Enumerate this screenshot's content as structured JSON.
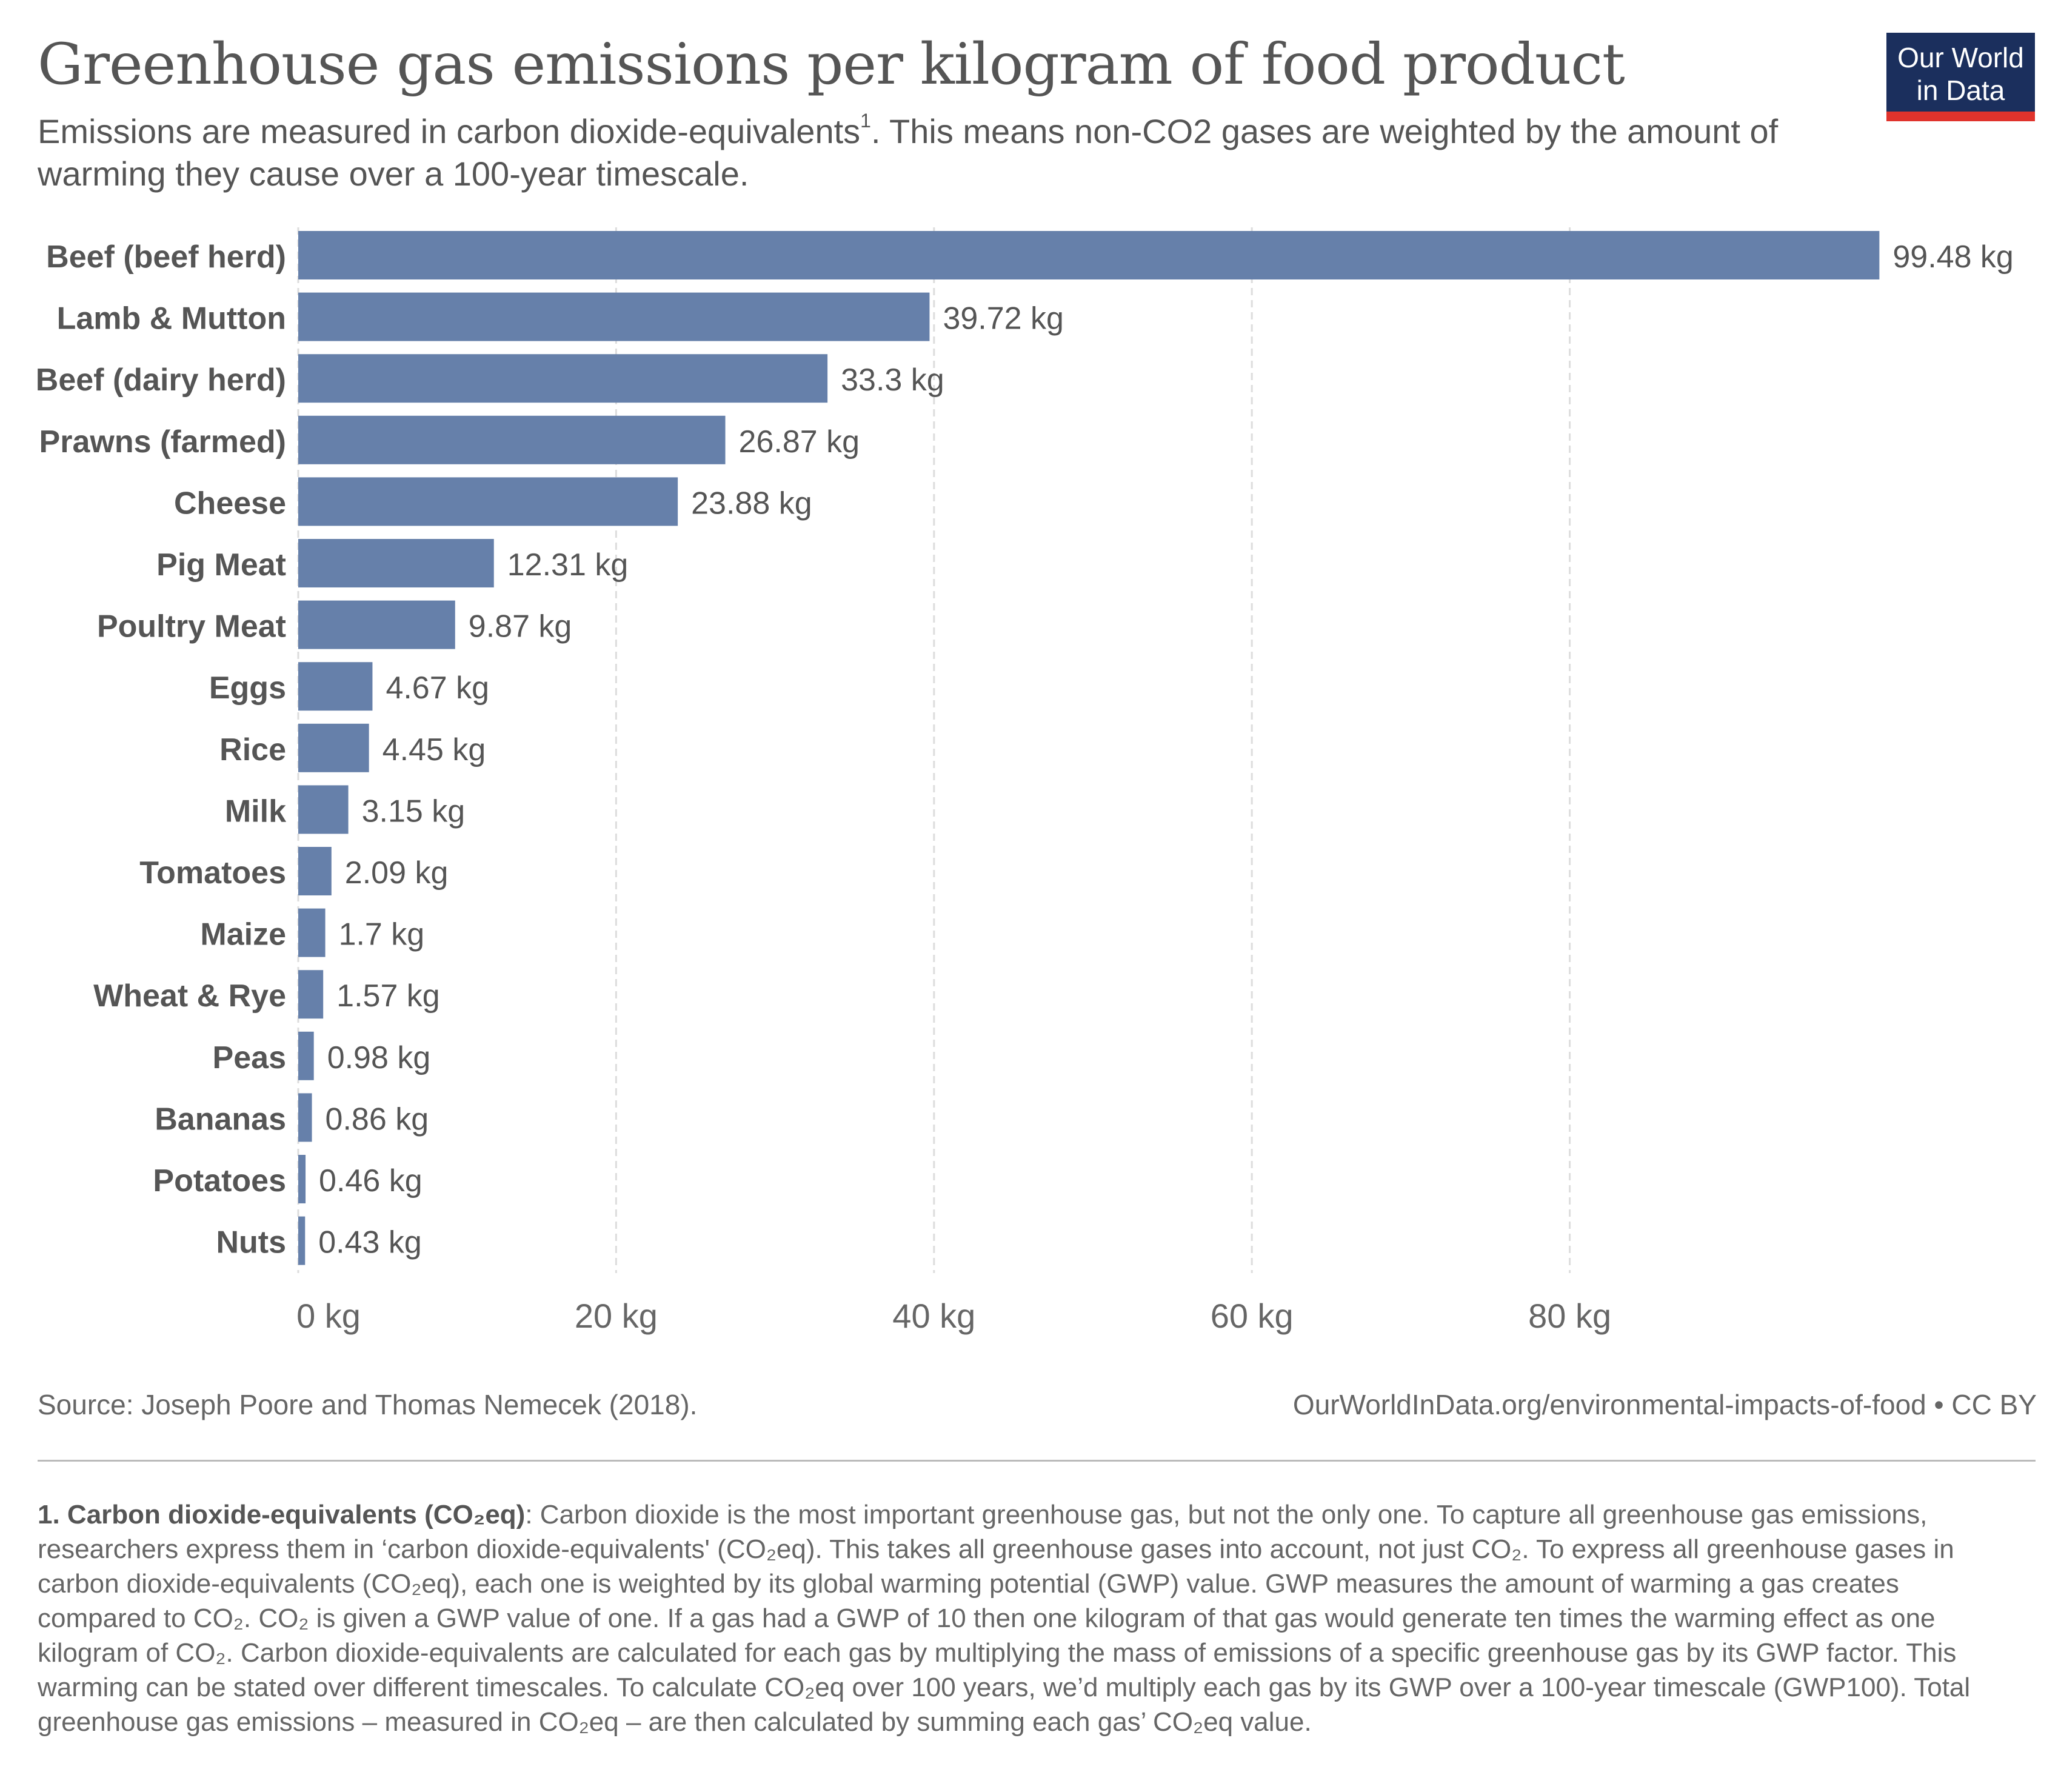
{
  "header": {
    "title": "Greenhouse gas emissions per kilogram of food product",
    "subtitle_before": "Emissions are measured in carbon dioxide-equivalents",
    "subtitle_sup": "1",
    "subtitle_after": ". This means non-CO2 gases are weighted by the amount of warming they cause over a 100-year timescale."
  },
  "logo": {
    "line1": "Our World",
    "line2": "in Data",
    "bg_color": "#1b2f5d",
    "accent_color": "#e0332c"
  },
  "chart_data": {
    "type": "bar",
    "orientation": "horizontal",
    "title": "Greenhouse gas emissions per kilogram of food product",
    "categories": [
      "Beef (beef herd)",
      "Lamb & Mutton",
      "Beef (dairy herd)",
      "Prawns (farmed)",
      "Cheese",
      "Pig Meat",
      "Poultry Meat",
      "Eggs",
      "Rice",
      "Milk",
      "Tomatoes",
      "Maize",
      "Wheat & Rye",
      "Peas",
      "Bananas",
      "Potatoes",
      "Nuts"
    ],
    "values": [
      99.48,
      39.72,
      33.3,
      26.87,
      23.88,
      12.31,
      9.87,
      4.67,
      4.45,
      3.15,
      2.09,
      1.7,
      1.57,
      0.98,
      0.86,
      0.46,
      0.43
    ],
    "value_labels": [
      "99.48 kg",
      "39.72 kg",
      "33.3 kg",
      "26.87 kg",
      "23.88 kg",
      "12.31 kg",
      "9.87 kg",
      "4.67 kg",
      "4.45 kg",
      "3.15 kg",
      "2.09 kg",
      "1.7 kg",
      "1.57 kg",
      "0.98 kg",
      "0.86 kg",
      "0.46 kg",
      "0.43 kg"
    ],
    "xticks": [
      0,
      20,
      40,
      60,
      80
    ],
    "xtick_labels": [
      "0 kg",
      "20 kg",
      "40 kg",
      "60 kg",
      "80 kg"
    ],
    "xlim": [
      0,
      100
    ],
    "grid": "vertical dashed",
    "bar_color": "#6680aa",
    "xlabel": "",
    "ylabel": ""
  },
  "footer": {
    "source": "Source: Joseph Poore and Thomas Nemecek (2018).",
    "url": "OurWorldInData.org/environmental-impacts-of-food • CC BY"
  },
  "footnote": {
    "label": "1. Carbon dioxide-equivalents (CO₂eq)",
    "text": ": Carbon dioxide is the most important greenhouse gas, but not the only one. To capture all greenhouse gas emissions, researchers express them in ‘carbon dioxide-equivalents' (CO₂eq). This takes all greenhouse gases into account, not just CO₂. To express all greenhouse gases in carbon dioxide-equivalents (CO₂eq), each one is weighted by its global warming potential (GWP) value. GWP measures the amount of warming a gas creates compared to CO₂. CO₂ is given a GWP value of one. If a gas had a GWP of 10 then one kilogram of that gas would generate ten times the warming effect as one kilogram of CO₂. Carbon dioxide-equivalents are calculated for each gas by multiplying the mass of emissions of a specific greenhouse gas by its GWP factor. This warming can be stated over different timescales. To calculate CO₂eq over 100 years, we’d multiply each gas by its GWP over a 100-year timescale (GWP100). Total greenhouse gas emissions – measured in CO₂eq – are then calculated by summing each gas’ CO₂eq value."
  }
}
